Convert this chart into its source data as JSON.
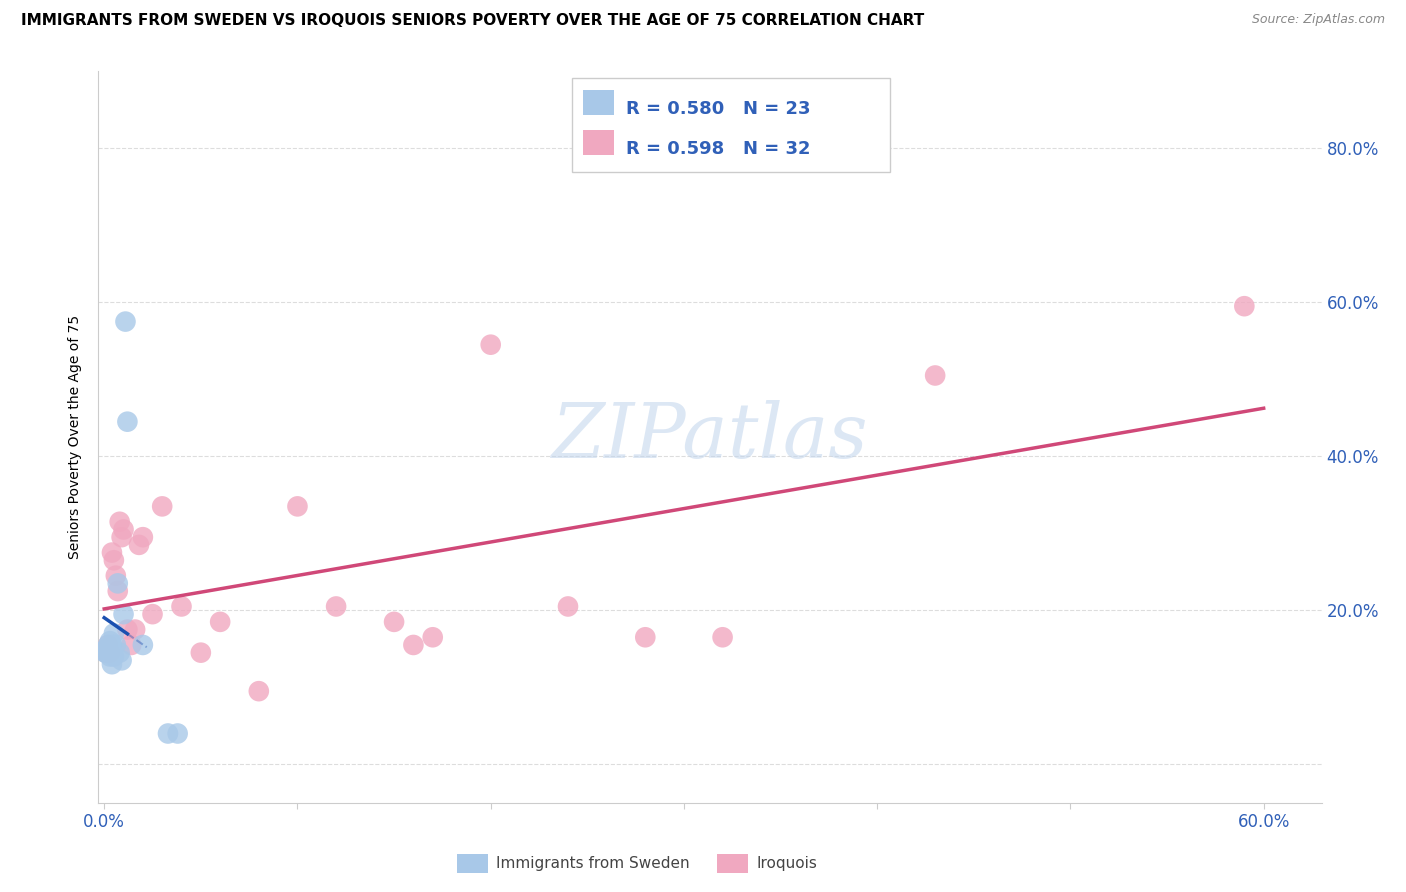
{
  "title": "IMMIGRANTS FROM SWEDEN VS IROQUOIS SENIORS POVERTY OVER THE AGE OF 75 CORRELATION CHART",
  "source": "Source: ZipAtlas.com",
  "ylabel": "Seniors Poverty Over the Age of 75",
  "xlim": [
    -0.003,
    0.63
  ],
  "ylim": [
    -0.05,
    0.9
  ],
  "sweden_x": [
    0.0005,
    0.001,
    0.001,
    0.002,
    0.002,
    0.003,
    0.003,
    0.003,
    0.004,
    0.004,
    0.004,
    0.005,
    0.005,
    0.006,
    0.007,
    0.008,
    0.009,
    0.01,
    0.011,
    0.012,
    0.02,
    0.033,
    0.038
  ],
  "sweden_y": [
    0.145,
    0.145,
    0.15,
    0.155,
    0.145,
    0.16,
    0.14,
    0.145,
    0.155,
    0.145,
    0.13,
    0.17,
    0.14,
    0.155,
    0.235,
    0.145,
    0.135,
    0.195,
    0.575,
    0.445,
    0.155,
    0.04,
    0.04
  ],
  "iroquois_x": [
    0.001,
    0.002,
    0.003,
    0.004,
    0.005,
    0.006,
    0.007,
    0.008,
    0.009,
    0.01,
    0.012,
    0.014,
    0.016,
    0.018,
    0.02,
    0.025,
    0.03,
    0.04,
    0.05,
    0.06,
    0.08,
    0.1,
    0.12,
    0.15,
    0.16,
    0.17,
    0.2,
    0.24,
    0.28,
    0.32,
    0.43,
    0.59
  ],
  "iroquois_y": [
    0.145,
    0.155,
    0.145,
    0.275,
    0.265,
    0.245,
    0.225,
    0.315,
    0.295,
    0.305,
    0.175,
    0.155,
    0.175,
    0.285,
    0.295,
    0.195,
    0.335,
    0.205,
    0.145,
    0.185,
    0.095,
    0.335,
    0.205,
    0.185,
    0.155,
    0.165,
    0.545,
    0.205,
    0.165,
    0.165,
    0.505,
    0.595
  ],
  "sweden_color": "#a8c8e8",
  "iroquois_color": "#f0a8c0",
  "sweden_line_color": "#1a50b0",
  "iroquois_line_color": "#d04878",
  "sweden_R": "0.580",
  "sweden_N": "23",
  "iroquois_R": "0.598",
  "iroquois_N": "32",
  "legend_label_sweden": "Immigrants from Sweden",
  "legend_label_iroquois": "Iroquois",
  "watermark": "ZIPatlas",
  "grid_color": "#dddddd",
  "title_fontsize": 11,
  "tick_color": "#3060b8"
}
